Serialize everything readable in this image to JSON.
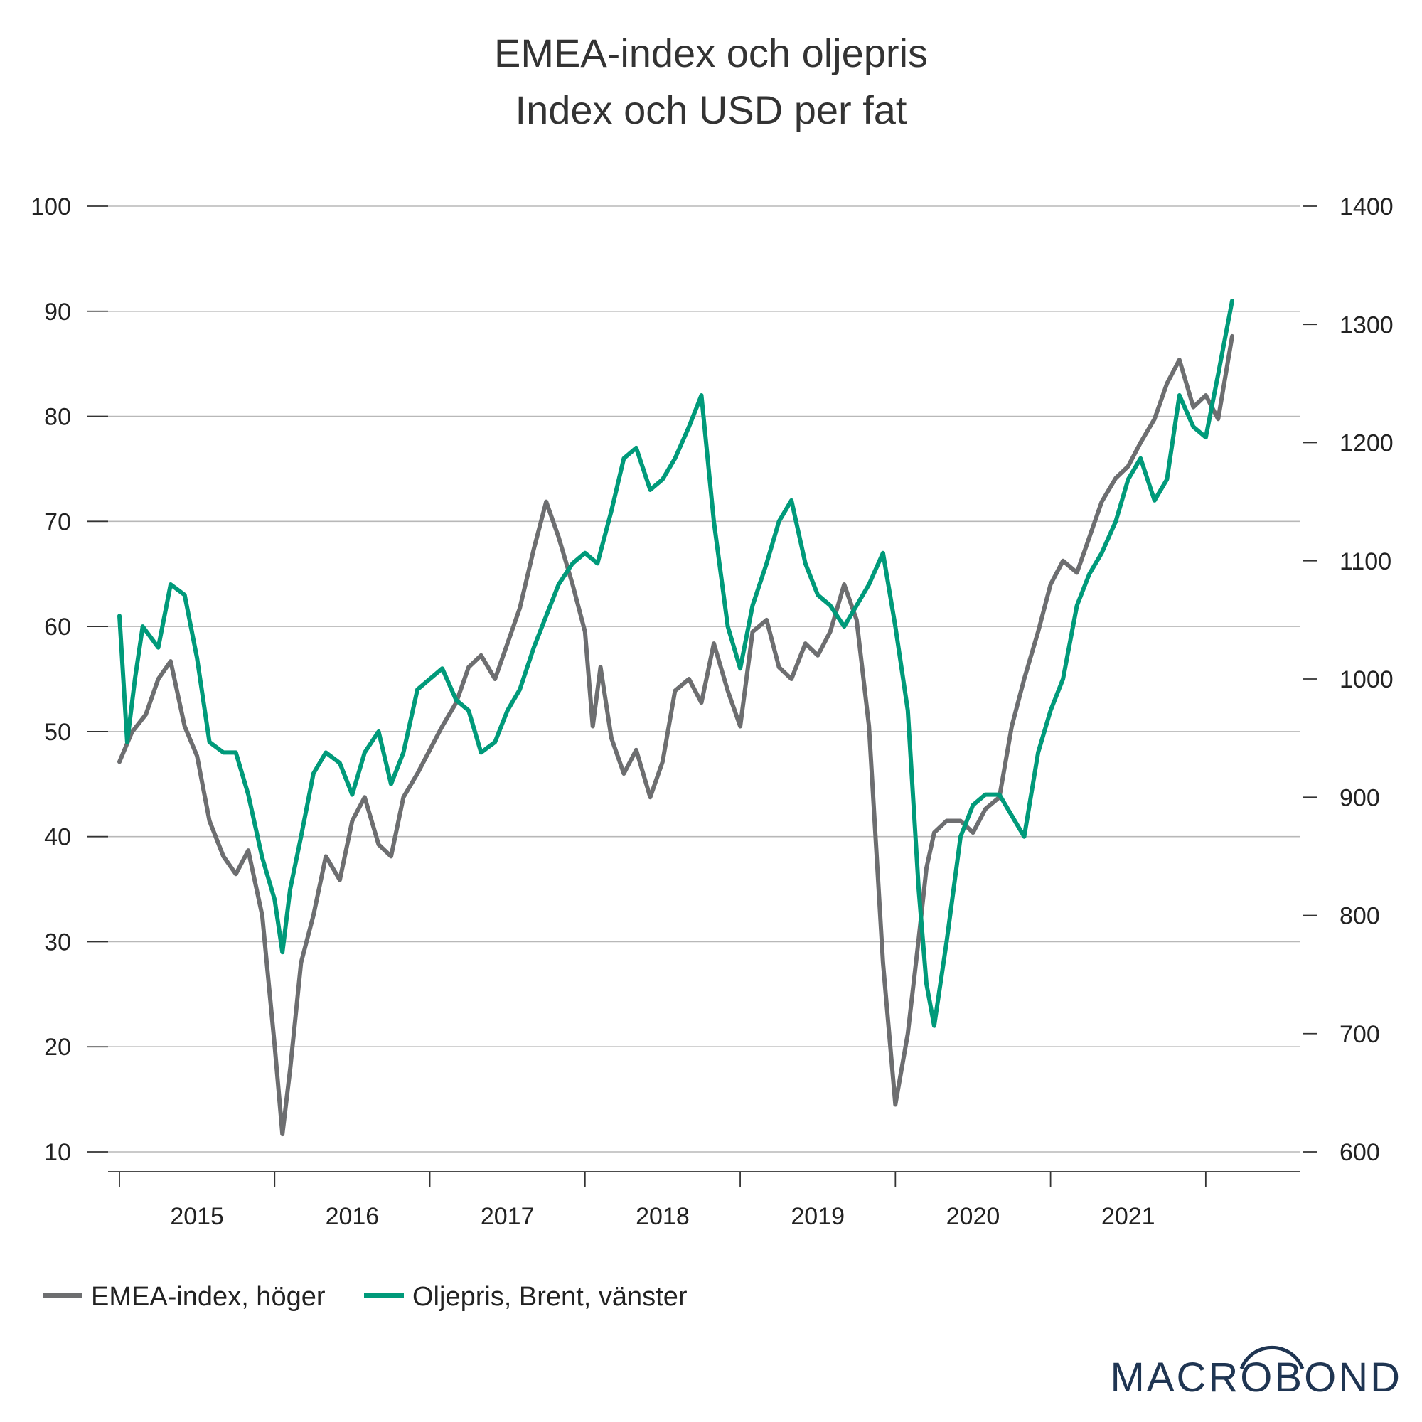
{
  "chart_data": {
    "type": "line",
    "title": "EMEA-index och oljepris",
    "subtitle": "Index och USD per fat",
    "left_axis": {
      "min": 10,
      "max": 100,
      "ticks": [
        "100",
        "90",
        "80",
        "70",
        "60",
        "50",
        "40",
        "30",
        "20",
        "10"
      ]
    },
    "right_axis": {
      "min": 600,
      "max": 1400,
      "ticks": [
        "1400",
        "1300",
        "1200",
        "1100",
        "1000",
        "900",
        "800",
        "700",
        "600"
      ]
    },
    "x_axis": {
      "start": 2015.0,
      "end": 2022.5,
      "year_labels": [
        "2015",
        "2016",
        "2017",
        "2018",
        "2019",
        "2020",
        "2021"
      ]
    },
    "series": [
      {
        "name": "EMEA-index, höger",
        "axis": "right",
        "color": "#6d6e70",
        "x": [
          2015.0,
          2015.08,
          2015.17,
          2015.25,
          2015.33,
          2015.42,
          2015.5,
          2015.58,
          2015.67,
          2015.75,
          2015.83,
          2015.92,
          2016.0,
          2016.05,
          2016.1,
          2016.17,
          2016.25,
          2016.33,
          2016.42,
          2016.5,
          2016.58,
          2016.67,
          2016.75,
          2016.83,
          2016.92,
          2017.0,
          2017.08,
          2017.17,
          2017.25,
          2017.33,
          2017.42,
          2017.5,
          2017.58,
          2017.67,
          2017.75,
          2017.83,
          2017.92,
          2018.0,
          2018.05,
          2018.1,
          2018.17,
          2018.25,
          2018.33,
          2018.42,
          2018.5,
          2018.58,
          2018.67,
          2018.75,
          2018.83,
          2018.92,
          2019.0,
          2019.08,
          2019.17,
          2019.25,
          2019.33,
          2019.42,
          2019.5,
          2019.58,
          2019.67,
          2019.75,
          2019.83,
          2019.92,
          2020.0,
          2020.08,
          2020.15,
          2020.2,
          2020.25,
          2020.33,
          2020.42,
          2020.5,
          2020.58,
          2020.67,
          2020.75,
          2020.83,
          2020.92,
          2021.0,
          2021.08,
          2021.17,
          2021.25,
          2021.33,
          2021.42,
          2021.5,
          2021.58,
          2021.67,
          2021.75,
          2021.83,
          2021.92,
          2022.0,
          2022.08,
          2022.17
        ],
        "values": [
          930,
          955,
          970,
          1000,
          1015,
          960,
          935,
          880,
          850,
          835,
          855,
          800,
          690,
          615,
          670,
          760,
          800,
          850,
          830,
          880,
          900,
          860,
          850,
          900,
          920,
          940,
          960,
          980,
          1010,
          1020,
          1000,
          1030,
          1060,
          1110,
          1150,
          1120,
          1080,
          1040,
          960,
          1010,
          950,
          920,
          940,
          900,
          930,
          990,
          1000,
          980,
          1030,
          990,
          960,
          1040,
          1050,
          1010,
          1000,
          1030,
          1020,
          1040,
          1080,
          1050,
          960,
          760,
          640,
          700,
          780,
          840,
          870,
          880,
          880,
          870,
          890,
          900,
          960,
          1000,
          1040,
          1080,
          1100,
          1090,
          1120,
          1150,
          1170,
          1180,
          1200,
          1220,
          1250,
          1270,
          1230,
          1240,
          1220,
          1290
        ]
      },
      {
        "name": "Oljepris, Brent, vänster",
        "axis": "left",
        "color": "#009a7a",
        "x": [
          2015.0,
          2015.05,
          2015.1,
          2015.15,
          2015.25,
          2015.33,
          2015.42,
          2015.5,
          2015.58,
          2015.67,
          2015.75,
          2015.83,
          2015.92,
          2016.0,
          2016.05,
          2016.1,
          2016.17,
          2016.25,
          2016.33,
          2016.42,
          2016.5,
          2016.58,
          2016.67,
          2016.75,
          2016.83,
          2016.92,
          2017.0,
          2017.08,
          2017.17,
          2017.25,
          2017.33,
          2017.42,
          2017.5,
          2017.58,
          2017.67,
          2017.75,
          2017.83,
          2017.92,
          2018.0,
          2018.08,
          2018.17,
          2018.25,
          2018.33,
          2018.42,
          2018.5,
          2018.58,
          2018.67,
          2018.75,
          2018.83,
          2018.92,
          2019.0,
          2019.08,
          2019.17,
          2019.25,
          2019.33,
          2019.42,
          2019.5,
          2019.58,
          2019.67,
          2019.75,
          2019.83,
          2019.92,
          2020.0,
          2020.08,
          2020.15,
          2020.2,
          2020.25,
          2020.33,
          2020.42,
          2020.5,
          2020.58,
          2020.67,
          2020.75,
          2020.83,
          2020.92,
          2021.0,
          2021.08,
          2021.17,
          2021.25,
          2021.33,
          2021.42,
          2021.5,
          2021.58,
          2021.67,
          2021.75,
          2021.83,
          2021.92,
          2022.0,
          2022.08,
          2022.17
        ],
        "values": [
          61,
          49,
          55,
          60,
          58,
          64,
          63,
          57,
          49,
          48,
          48,
          44,
          38,
          34,
          29,
          35,
          40,
          46,
          48,
          47,
          44,
          48,
          50,
          45,
          48,
          54,
          55,
          56,
          53,
          52,
          48,
          49,
          52,
          54,
          58,
          61,
          64,
          66,
          67,
          66,
          71,
          76,
          77,
          73,
          74,
          76,
          79,
          82,
          70,
          60,
          56,
          62,
          66,
          70,
          72,
          66,
          63,
          62,
          60,
          62,
          64,
          67,
          60,
          52,
          35,
          26,
          22,
          30,
          40,
          43,
          44,
          44,
          42,
          40,
          48,
          52,
          55,
          62,
          65,
          67,
          70,
          74,
          76,
          72,
          74,
          82,
          79,
          78,
          84,
          91
        ]
      }
    ],
    "legend": [
      "EMEA-index, höger",
      "Oljepris, Brent, vänster"
    ]
  },
  "brand": {
    "logo_text": "MACROBOND"
  }
}
